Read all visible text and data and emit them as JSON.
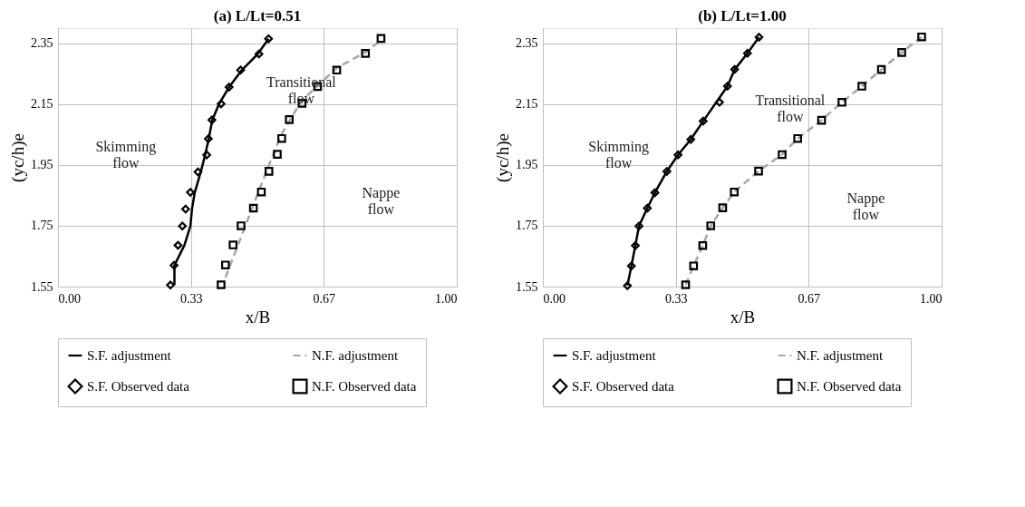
{
  "chart_data": [
    {
      "type": "scatter",
      "title": "(a) L/Lt=0.51",
      "xlabel": "x/B",
      "ylabel": "(yc/h)e",
      "xlim": [
        0,
        1
      ],
      "xticks": [
        {
          "value": 0,
          "label": "0.00"
        },
        {
          "value": 0.3333,
          "label": "0.33"
        },
        {
          "value": 0.6667,
          "label": "0.67"
        },
        {
          "value": 1,
          "label": "1.00"
        }
      ],
      "ylim": [
        1.55,
        2.4
      ],
      "yticks": [
        1.55,
        1.75,
        1.95,
        2.15,
        2.35
      ],
      "grid": true,
      "legend": "bottom",
      "series": [
        {
          "name": "S.F. adjustment",
          "type": "line",
          "color": "#000000",
          "line_style": "solid",
          "marker": "none",
          "x": [
            0.292,
            0.292,
            0.317,
            0.332,
            0.336,
            0.343,
            0.358,
            0.369,
            0.378,
            0.387,
            0.404,
            0.429,
            0.461,
            0.501,
            0.528
          ],
          "values": [
            1.555,
            1.62,
            1.686,
            1.749,
            1.805,
            1.86,
            1.927,
            1.983,
            2.036,
            2.098,
            2.151,
            2.206,
            2.262,
            2.315,
            2.365
          ]
        },
        {
          "name": "N.F. adjustment",
          "type": "line",
          "color": "#a6a6a6",
          "line_style": "dashed",
          "marker": "none",
          "x": [
            0.42,
            0.47,
            0.52,
            0.56,
            0.61,
            0.7,
            0.77,
            0.81
          ],
          "values": [
            1.58,
            1.75,
            1.92,
            2.05,
            2.16,
            2.27,
            2.32,
            2.36
          ]
        },
        {
          "name": "S.F. Observed data",
          "color": "#000000",
          "marker": "diamond",
          "x": [
            0.282,
            0.291,
            0.301,
            0.312,
            0.32,
            0.332,
            0.351,
            0.373,
            0.377,
            0.386,
            0.409,
            0.429,
            0.458,
            0.504,
            0.528
          ],
          "values": [
            1.555,
            1.62,
            1.686,
            1.749,
            1.805,
            1.86,
            1.927,
            1.983,
            2.036,
            2.098,
            2.151,
            2.206,
            2.262,
            2.315,
            2.365
          ]
        },
        {
          "name": "N.F. Observed data",
          "color": "#000000",
          "marker": "square",
          "x": [
            0.409,
            0.42,
            0.439,
            0.459,
            0.49,
            0.51,
            0.529,
            0.55,
            0.561,
            0.58,
            0.612,
            0.651,
            0.699,
            0.771,
            0.81
          ],
          "values": [
            1.556,
            1.621,
            1.687,
            1.75,
            1.808,
            1.861,
            1.929,
            1.985,
            2.037,
            2.099,
            2.153,
            2.208,
            2.262,
            2.317,
            2.366
          ]
        }
      ],
      "annotations": [
        "Skimming\nflow",
        "Transitional\nflow",
        "Nappe\nflow"
      ]
    },
    {
      "type": "scatter",
      "title": "(b) L/Lt=1.00",
      "xlabel": "x/B",
      "ylabel": "(yc/h)e",
      "xlim": [
        0,
        1
      ],
      "xticks": [
        {
          "value": 0,
          "label": "0.00"
        },
        {
          "value": 0.3333,
          "label": "0.33"
        },
        {
          "value": 0.6667,
          "label": "0.67"
        },
        {
          "value": 1,
          "label": "1.00"
        }
      ],
      "ylim": [
        1.55,
        2.4
      ],
      "yticks": [
        1.55,
        1.75,
        1.95,
        2.15,
        2.35
      ],
      "grid": true,
      "legend": "bottom",
      "series": [
        {
          "name": "S.F. adjustment",
          "type": "line",
          "color": "#000000",
          "line_style": "solid",
          "marker": "none",
          "x": [
            0.212,
            0.222,
            0.232,
            0.241,
            0.262,
            0.281,
            0.311,
            0.339,
            0.371,
            0.402,
            0.435,
            0.463,
            0.481,
            0.513,
            0.542
          ],
          "values": [
            1.553,
            1.618,
            1.685,
            1.749,
            1.808,
            1.859,
            1.929,
            1.983,
            2.034,
            2.094,
            2.156,
            2.209,
            2.264,
            2.317,
            2.37
          ]
        },
        {
          "name": "N.F. adjustment",
          "type": "line",
          "color": "#a6a6a6",
          "line_style": "dashed",
          "marker": "none",
          "x": [
            0.358,
            0.378,
            0.401,
            0.421,
            0.451,
            0.48,
            0.541,
            0.6,
            0.639,
            0.699,
            0.75,
            0.8,
            0.849,
            0.9,
            0.95
          ],
          "values": [
            1.556,
            1.618,
            1.685,
            1.75,
            1.809,
            1.861,
            1.93,
            1.984,
            2.037,
            2.097,
            2.156,
            2.209,
            2.264,
            2.32,
            2.371
          ]
        },
        {
          "name": "S.F. Observed data",
          "color": "#000000",
          "marker": "diamond",
          "x": [
            0.212,
            0.222,
            0.232,
            0.241,
            0.262,
            0.281,
            0.311,
            0.339,
            0.371,
            0.402,
            0.443,
            0.463,
            0.481,
            0.513,
            0.542
          ],
          "values": [
            1.553,
            1.618,
            1.685,
            1.749,
            1.808,
            1.859,
            1.929,
            1.983,
            2.034,
            2.094,
            2.156,
            2.209,
            2.264,
            2.317,
            2.37
          ]
        },
        {
          "name": "N.F. Observed data",
          "color": "#000000",
          "marker": "square",
          "x": [
            0.358,
            0.378,
            0.401,
            0.421,
            0.451,
            0.48,
            0.541,
            0.6,
            0.639,
            0.699,
            0.75,
            0.8,
            0.849,
            0.9,
            0.95
          ],
          "values": [
            1.556,
            1.618,
            1.685,
            1.75,
            1.809,
            1.861,
            1.93,
            1.984,
            2.037,
            2.097,
            2.156,
            2.209,
            2.264,
            2.32,
            2.371
          ]
        }
      ],
      "annotations": [
        "Skimming\nflow",
        "Transitional\nflow",
        "Nappe\nflow"
      ]
    }
  ]
}
